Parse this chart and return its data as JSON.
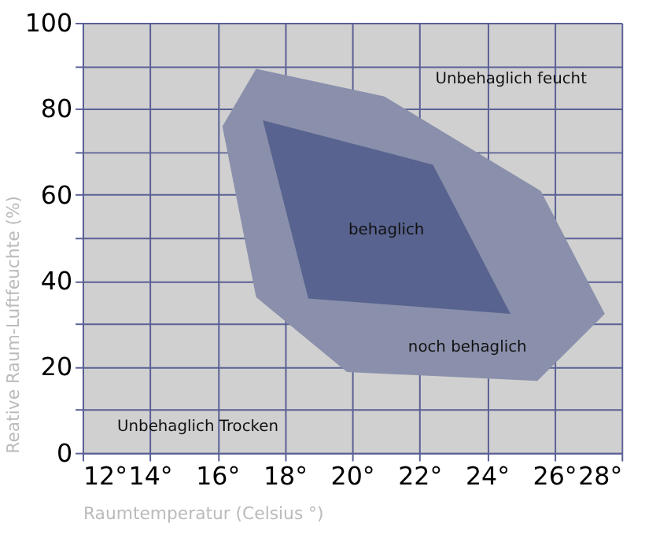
{
  "chart_data": {
    "type": "area",
    "xlabel": "Raumtemperatur (Celsius °)",
    "ylabel": "Reative Raum-Luftfeuchte (%)",
    "xlim": [
      12,
      28
    ],
    "xticks": [
      {
        "value": 12,
        "label": "12°"
      },
      {
        "value": 14,
        "label": "14°"
      },
      {
        "value": 16,
        "label": "16°"
      },
      {
        "value": 18,
        "label": "18°"
      },
      {
        "value": 20,
        "label": "20°"
      },
      {
        "value": 22,
        "label": "22°"
      },
      {
        "value": 24,
        "label": "24°"
      },
      {
        "value": 26,
        "label": "26°"
      },
      {
        "value": 28,
        "label": "28°"
      }
    ],
    "ylim": [
      0,
      100
    ],
    "yticks": [
      0,
      {
        "value": 10,
        "label": null
      },
      20,
      {
        "value": 30,
        "label": null
      },
      40,
      {
        "value": 50,
        "label": null
      },
      60,
      {
        "value": 70,
        "label": null
      },
      80,
      {
        "value": 90,
        "label": null
      },
      100
    ],
    "grid": true,
    "series": [
      {
        "color": "#8a90ab",
        "x": [
          17.15,
          20.95,
          25.6,
          27.5,
          25.5,
          19.85,
          17.15,
          16.15
        ],
        "values": [
          89.3,
          82.9,
          60.9,
          32.3,
          16.7,
          18.8,
          36.2,
          75.9
        ]
      },
      {
        "color": "#58638f",
        "x": [
          17.35,
          22.4,
          24.7,
          18.7
        ],
        "values": [
          77.3,
          67,
          32.3,
          35.9
        ]
      }
    ],
    "annotations": [
      "Unbehaglich feucht",
      "behaglich",
      "noch behaglich",
      "Unbehaglich Trocken"
    ]
  }
}
